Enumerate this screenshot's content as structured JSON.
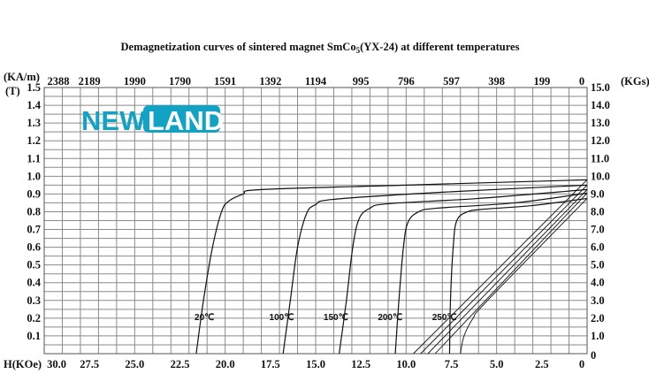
{
  "chart_data": {
    "type": "line",
    "title": "Demagnetization curves of sintered magnet SmCo",
    "title_sub": "5",
    "title_rest": "(YX-24) at different temperatures",
    "logo": {
      "part1": "NEW",
      "part2": "LAND",
      "color": "#12a3c4"
    },
    "xlabel": "H(KOe)",
    "x_reversed": true,
    "xlim": [
      30,
      0
    ],
    "x_ticks": [
      "30.0",
      "27.5",
      "25.0",
      "22.5",
      "20.0",
      "17.5",
      "15.0",
      "12.5",
      "10.0",
      "7.5",
      "5.0",
      "2.5",
      "0"
    ],
    "top_axis_label": "(KA/m)",
    "top_ticks": [
      "2388",
      "2189",
      "1990",
      "1790",
      "1591",
      "1392",
      "1194",
      "995",
      "796",
      "597",
      "398",
      "199",
      "0"
    ],
    "ylabel_left": "(T)",
    "ylim": [
      0,
      1.5
    ],
    "y_ticks_left": [
      "1.5",
      "1.4",
      "1.3",
      "1.2",
      "1.1",
      "1.0",
      "0.9",
      "0.8",
      "0.7",
      "0.6",
      "0.5",
      "0.4",
      "0.3",
      "0.2",
      "0.1"
    ],
    "ylabel_right": "(KGs)",
    "y_ticks_right": [
      "15.0",
      "14.0",
      "13.0",
      "12.0",
      "11.0",
      "10.0",
      "9.0",
      "8.0",
      "7.0",
      "6.0",
      "5.0",
      "4.0",
      "3.0",
      "2.0",
      "1.0",
      "0"
    ],
    "grid": true,
    "series": [
      {
        "name": "20℃",
        "label_at": [
          20.6,
          0.21
        ],
        "J": [
          [
            21.6,
            0
          ],
          [
            21.2,
            0.3
          ],
          [
            20.7,
            0.6
          ],
          [
            20.2,
            0.8
          ],
          [
            19.8,
            0.86
          ],
          [
            19.0,
            0.9
          ],
          [
            18.0,
            0.925
          ],
          [
            10,
            0.95
          ],
          [
            0,
            0.98
          ]
        ],
        "B": [
          [
            0,
            0.98
          ],
          [
            9.6,
            0
          ]
        ]
      },
      {
        "name": "100℃",
        "label_at": [
          16.2,
          0.21
        ],
        "J": [
          [
            16.8,
            0
          ],
          [
            16.4,
            0.3
          ],
          [
            16.0,
            0.6
          ],
          [
            15.5,
            0.79
          ],
          [
            15.0,
            0.84
          ],
          [
            14.0,
            0.87
          ],
          [
            8,
            0.91
          ],
          [
            0,
            0.95
          ]
        ],
        "B": [
          [
            0,
            0.95
          ],
          [
            9.2,
            0
          ]
        ]
      },
      {
        "name": "150℃",
        "label_at": [
          13.2,
          0.21
        ],
        "J": [
          [
            13.7,
            0
          ],
          [
            13.3,
            0.3
          ],
          [
            12.95,
            0.6
          ],
          [
            12.6,
            0.76
          ],
          [
            12.0,
            0.82
          ],
          [
            11.0,
            0.845
          ],
          [
            6,
            0.875
          ],
          [
            0,
            0.925
          ]
        ],
        "B": [
          [
            0,
            0.925
          ],
          [
            8.8,
            0
          ]
        ]
      },
      {
        "name": "200℃",
        "label_at": [
          10.2,
          0.21
        ],
        "J": [
          [
            10.6,
            0
          ],
          [
            10.4,
            0.3
          ],
          [
            10.15,
            0.6
          ],
          [
            9.9,
            0.74
          ],
          [
            9.3,
            0.8
          ],
          [
            8.3,
            0.82
          ],
          [
            4,
            0.85
          ],
          [
            0,
            0.905
          ]
        ],
        "B": [
          [
            0,
            0.905
          ],
          [
            8.4,
            0
          ]
        ]
      },
      {
        "name": "250℃",
        "label_at": [
          7.2,
          0.21
        ],
        "J": [
          [
            7.6,
            0
          ],
          [
            7.55,
            0.3
          ],
          [
            7.4,
            0.6
          ],
          [
            7.2,
            0.75
          ],
          [
            6.6,
            0.8
          ],
          [
            5.6,
            0.815
          ],
          [
            3,
            0.835
          ],
          [
            0,
            0.875
          ]
        ],
        "B": [
          [
            0,
            0.875
          ],
          [
            5.5,
            0.3
          ],
          [
            6.3,
            0.2
          ],
          [
            6.8,
            0.1
          ],
          [
            7.0,
            0
          ]
        ]
      }
    ]
  }
}
